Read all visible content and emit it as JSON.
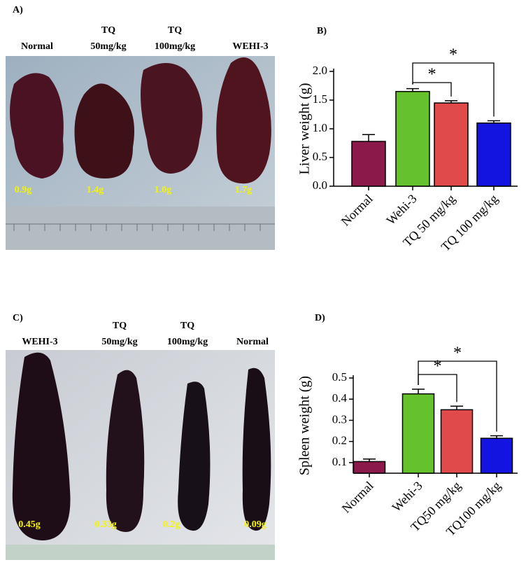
{
  "photos": [
    {
      "panel": "A)",
      "labels": [
        [
          "Normal"
        ],
        [
          "TQ",
          "50mg/kg"
        ],
        [
          "TQ",
          "100mg/kg"
        ],
        [
          "WEHI-3"
        ]
      ],
      "weights": [
        "0.9g",
        "1.4g",
        "1.0g",
        "1.7g"
      ]
    },
    {
      "panel": "C)",
      "labels": [
        [
          "WEHI-3"
        ],
        [
          "TQ",
          "50mg/kg"
        ],
        [
          "TQ",
          "100mg/kg"
        ],
        [
          "Normal"
        ]
      ],
      "weights": [
        "0.45g",
        "0.33g",
        "0.2g",
        "0.09g"
      ]
    }
  ],
  "chart_data": [
    {
      "type": "bar",
      "panel": "B)",
      "y_label": "Liver weight (g)",
      "categories": [
        "Normal",
        "Wehi-3",
        "TQ 50 mg/kg",
        "TQ 100 mg/kg"
      ],
      "values": [
        0.78,
        1.65,
        1.45,
        1.1
      ],
      "errors": [
        0.12,
        0.05,
        0.04,
        0.04
      ],
      "colors": [
        "#8b1a4a",
        "#66c22c",
        "#e04a4a",
        "#1414e0"
      ],
      "ylim": [
        0,
        2.0
      ],
      "yticks": [
        {
          "value": 0,
          "label": "0.0"
        },
        0.5,
        {
          "value": 1,
          "label": "1.0"
        },
        1.5,
        {
          "value": 2,
          "label": "2.0"
        }
      ],
      "annotations": [
        "*",
        "*"
      ]
    },
    {
      "type": "bar",
      "panel": "D)",
      "y_label": "Spleen weight (g)",
      "categories": [
        "Normal",
        "Wehi-3",
        "TQ50 mg/kg",
        "TQ100 mg/kg"
      ],
      "values": [
        0.105,
        0.425,
        0.35,
        0.215
      ],
      "errors": [
        0.012,
        0.022,
        0.017,
        0.012
      ],
      "colors": [
        "#8b1a4a",
        "#66c22c",
        "#e04a4a",
        "#1414e0"
      ],
      "ylim": [
        0.05,
        0.5
      ],
      "yticks": [
        0.1,
        0.2,
        0.3,
        0.4,
        0.5
      ],
      "annotations": [
        "*",
        "*"
      ]
    }
  ]
}
